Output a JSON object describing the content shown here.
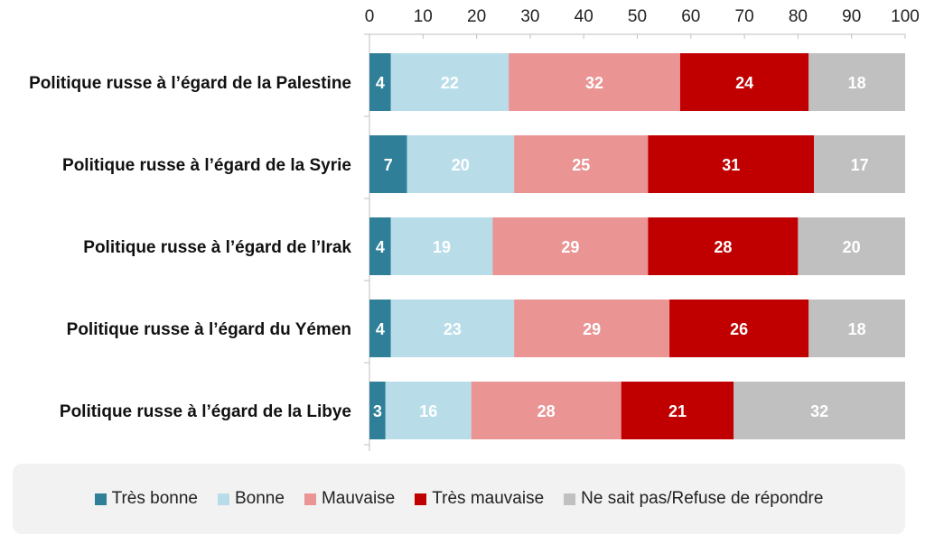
{
  "chart_data": {
    "type": "bar",
    "orientation": "horizontal",
    "stacked": true,
    "title": "",
    "xlabel": "",
    "ylabel": "",
    "xlim": [
      0,
      100
    ],
    "x_ticks": [
      0,
      10,
      20,
      30,
      40,
      50,
      60,
      70,
      80,
      90,
      100
    ],
    "grid": false,
    "legend_position": "bottom",
    "categories": [
      "Politique russe à l’égard de la Palestine",
      "Politique russe à l’égard de la Syrie",
      "Politique russe à l’égard de l’Irak",
      "Politique russe à l’égard du Yémen",
      "Politique russe à l’égard de la Libye"
    ],
    "series": [
      {
        "name": "Très bonne",
        "color": "#2e7f97",
        "label_color": "#ffffff",
        "values": [
          4,
          7,
          4,
          4,
          3
        ]
      },
      {
        "name": "Bonne",
        "color": "#b8dde9",
        "label_color": "#ffffff",
        "values": [
          22,
          20,
          19,
          23,
          16
        ]
      },
      {
        "name": "Mauvaise",
        "color": "#ea9494",
        "label_color": "#ffffff",
        "values": [
          32,
          25,
          29,
          29,
          28
        ]
      },
      {
        "name": "Très mauvaise",
        "color": "#c00000",
        "label_color": "#ffffff",
        "values": [
          24,
          31,
          28,
          26,
          21
        ]
      },
      {
        "name": "Ne sait pas/Refuse de répondre",
        "color": "#c0c0c0",
        "label_color": "#ffffff",
        "values": [
          18,
          17,
          20,
          18,
          32
        ]
      }
    ]
  }
}
